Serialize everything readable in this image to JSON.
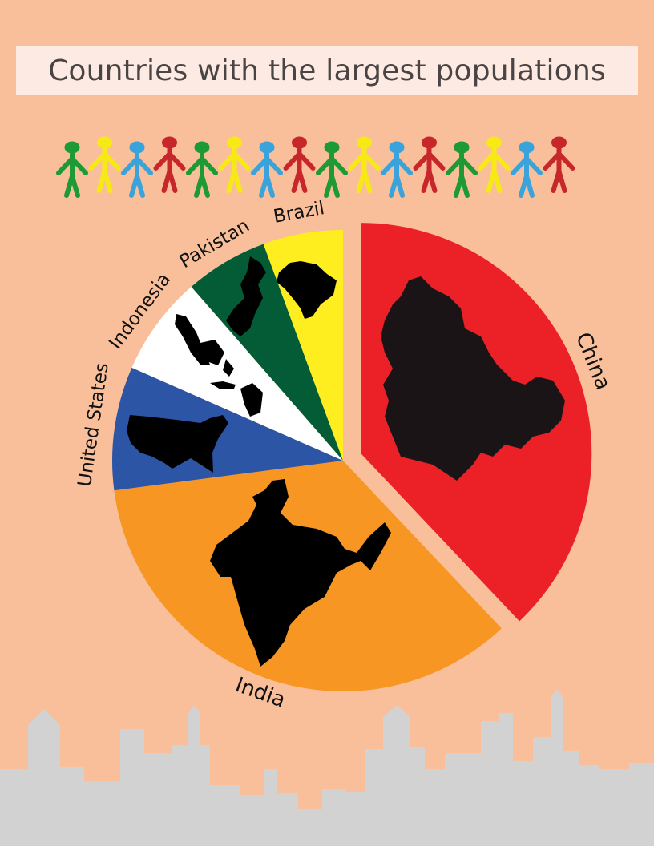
{
  "title": "Countries with the largest populations",
  "colors": {
    "background": "#f9bf9a",
    "title_box": "#fdebe3",
    "title_text": "#4a4444",
    "skyline": "#d2d2d2",
    "people": [
      "#1e9a35",
      "#f7ea14",
      "#3aa3dc",
      "#c7272a"
    ]
  },
  "chart_data": {
    "type": "pie",
    "title": "Countries with the largest populations",
    "slices": [
      {
        "label": "China",
        "value": 35.9,
        "color": "#ec2128",
        "exploded": true,
        "map_icon": "china-map-icon"
      },
      {
        "label": "India",
        "value": 33.1,
        "color": "#f79622",
        "exploded": false,
        "map_icon": "india-map-icon"
      },
      {
        "label": "United States",
        "value": 8.2,
        "color": "#2c55a5",
        "exploded": false,
        "map_icon": "united-states-map-icon"
      },
      {
        "label": "Indonesia",
        "value": 6.6,
        "color": "#ffffff",
        "exploded": false,
        "map_icon": "indonesia-map-icon"
      },
      {
        "label": "Pakistan",
        "value": 5.5,
        "color": "#045c37",
        "exploded": false,
        "map_icon": "pakistan-map-icon"
      },
      {
        "label": "Brazil",
        "value": 5.3,
        "color": "#ffee1f",
        "exploded": false,
        "map_icon": "brazil-map-icon"
      }
    ],
    "legend": "none"
  }
}
